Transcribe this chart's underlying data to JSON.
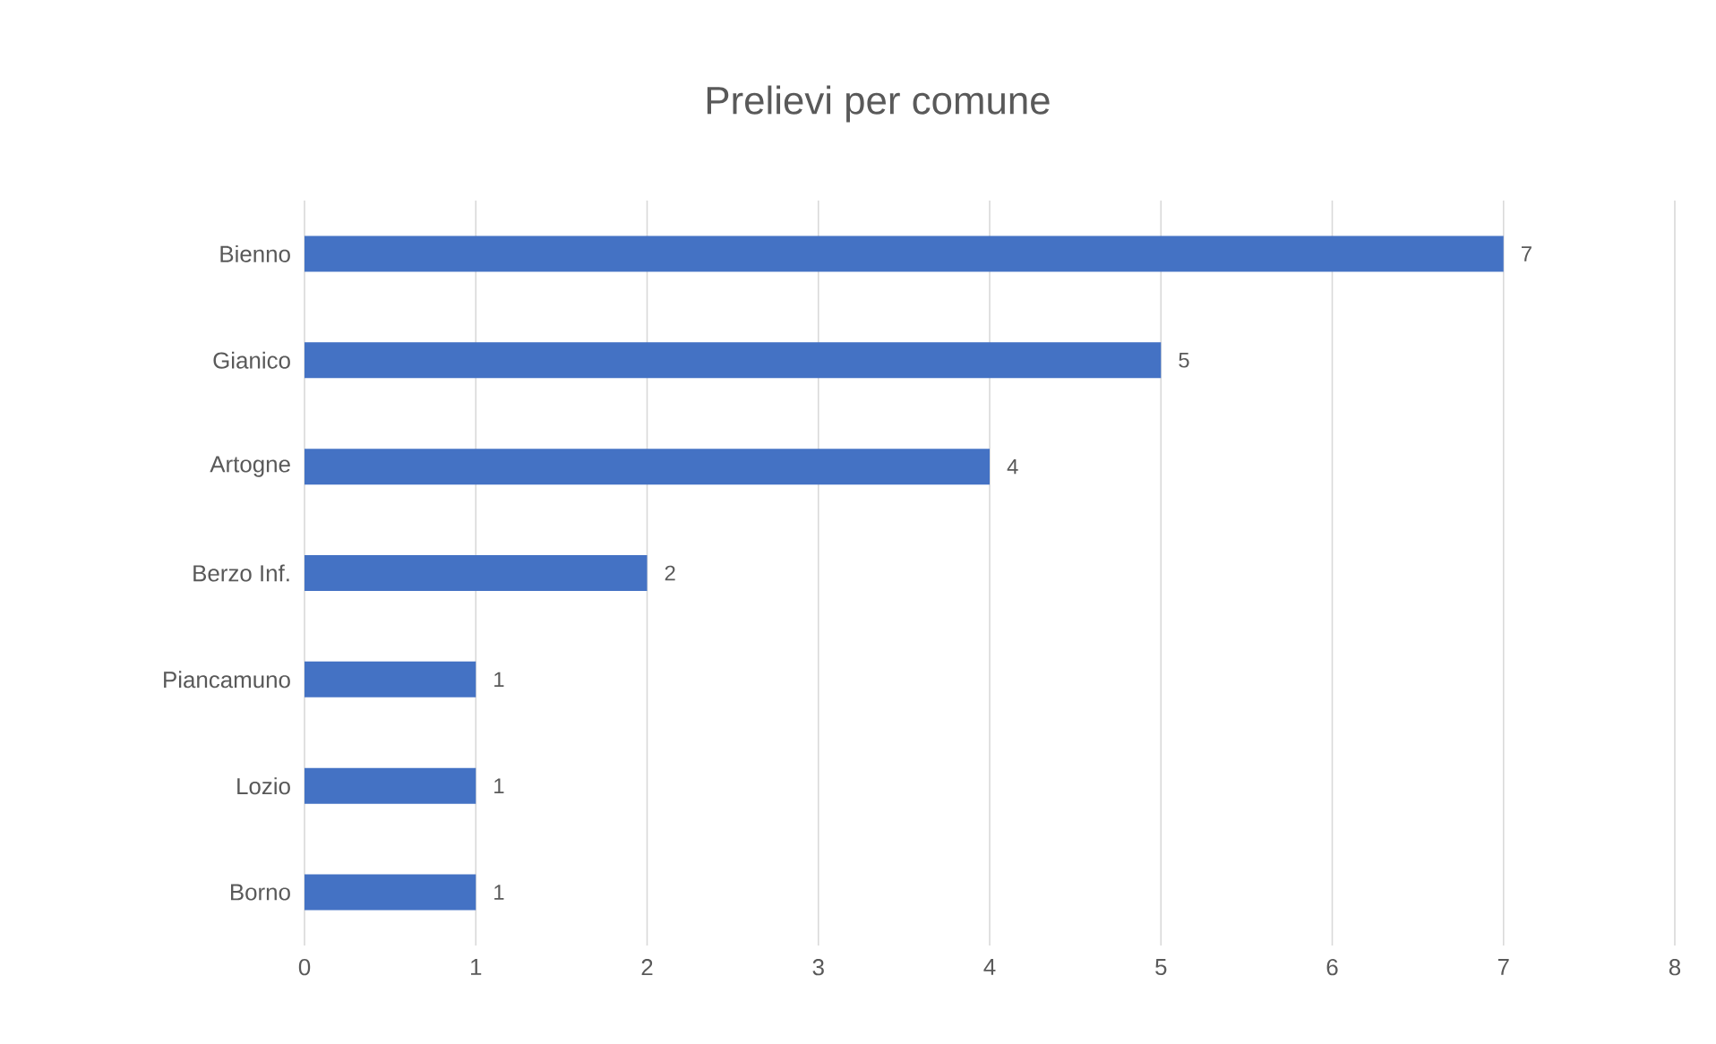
{
  "chart_data": {
    "type": "bar",
    "orientation": "horizontal",
    "title": "Prelievi per comune",
    "categories": [
      "Bienno",
      "Gianico",
      "Artogne",
      "Berzo Inf.",
      "Piancamuno",
      "Lozio",
      "Borno"
    ],
    "values": [
      7,
      5,
      4,
      2,
      1,
      1,
      1
    ],
    "color": "#4472c4",
    "xlim": [
      0,
      8
    ],
    "xticks": [
      0,
      1,
      2,
      3,
      4,
      5,
      6,
      7,
      8
    ],
    "grid": "x",
    "data_labels": true
  }
}
